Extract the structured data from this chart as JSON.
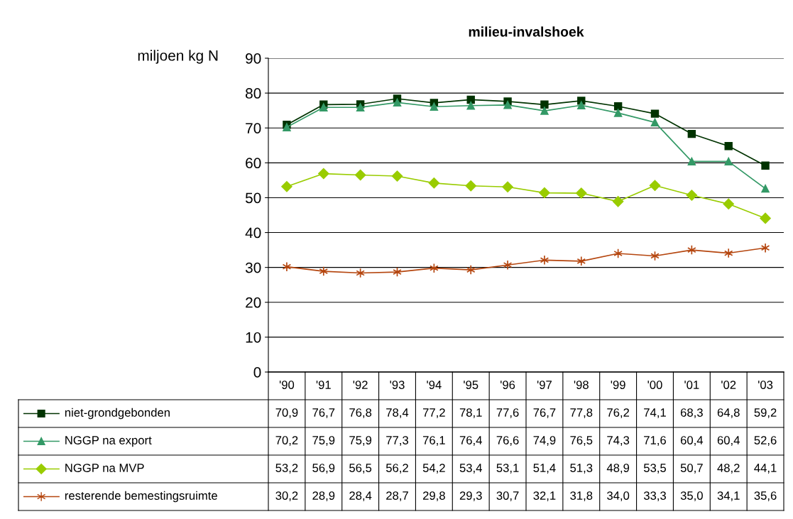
{
  "chart_data": {
    "type": "line",
    "title": "milieu-invalshoek",
    "ylabel": "miljoen kg N",
    "categories": [
      "'90",
      "'91",
      "'92",
      "'93",
      "'94",
      "'95",
      "'96",
      "'97",
      "'98",
      "'99",
      "'00",
      "'01",
      "'02",
      "'03"
    ],
    "series": [
      {
        "name": "niet-grondgebonden",
        "color": "#003300",
        "marker": "square",
        "values": [
          70.9,
          76.7,
          76.8,
          78.4,
          77.2,
          78.1,
          77.6,
          76.7,
          77.8,
          76.2,
          74.1,
          68.3,
          64.8,
          59.2
        ],
        "value_labels": [
          "70,9",
          "76,7",
          "76,8",
          "78,4",
          "77,2",
          "78,1",
          "77,6",
          "76,7",
          "77,8",
          "76,2",
          "74,1",
          "68,3",
          "64,8",
          "59,2"
        ]
      },
      {
        "name": "NGGP na export",
        "color": "#339966",
        "marker": "triangle",
        "values": [
          70.2,
          75.9,
          75.9,
          77.3,
          76.1,
          76.4,
          76.6,
          74.9,
          76.5,
          74.3,
          71.6,
          60.4,
          60.4,
          52.6
        ],
        "value_labels": [
          "70,2",
          "75,9",
          "75,9",
          "77,3",
          "76,1",
          "76,4",
          "76,6",
          "74,9",
          "76,5",
          "74,3",
          "71,6",
          "60,4",
          "60,4",
          "52,6"
        ]
      },
      {
        "name": "NGGP na MVP",
        "color": "#99cc00",
        "marker": "diamond",
        "values": [
          53.2,
          56.9,
          56.5,
          56.2,
          54.2,
          53.4,
          53.1,
          51.4,
          51.3,
          48.9,
          53.5,
          50.7,
          48.2,
          44.1
        ],
        "value_labels": [
          "53,2",
          "56,9",
          "56,5",
          "56,2",
          "54,2",
          "53,4",
          "53,1",
          "51,4",
          "51,3",
          "48,9",
          "53,5",
          "50,7",
          "48,2",
          "44,1"
        ]
      },
      {
        "name": "resterende bemestingsruimte",
        "color": "#b5460f",
        "marker": "cross",
        "values": [
          30.2,
          28.9,
          28.4,
          28.7,
          29.8,
          29.3,
          30.7,
          32.1,
          31.8,
          34.0,
          33.3,
          35.0,
          34.1,
          35.6
        ],
        "value_labels": [
          "30,2",
          "28,9",
          "28,4",
          "28,7",
          "29,8",
          "29,3",
          "30,7",
          "32,1",
          "31,8",
          "34,0",
          "33,3",
          "35,0",
          "34,1",
          "35,6"
        ]
      }
    ],
    "ylim": [
      0,
      90
    ],
    "yticks": [
      0,
      10,
      20,
      30,
      40,
      50,
      60,
      70,
      80,
      90
    ],
    "grid": "y",
    "legend": "bottom left",
    "line_style": "solid"
  }
}
